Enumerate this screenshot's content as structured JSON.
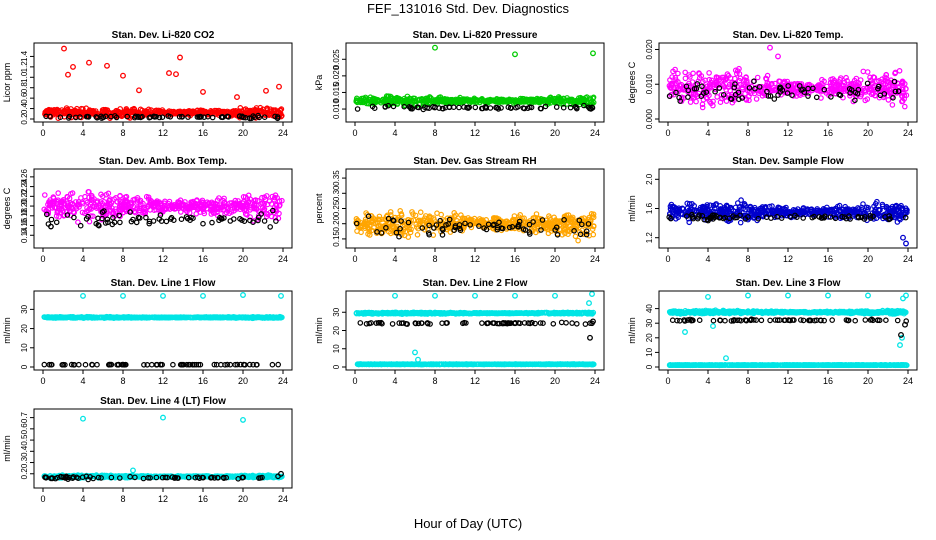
{
  "figure": {
    "title": "FEF_131016  Std. Dev. Diagnostics",
    "xlabel": "Hour of Day (UTC)"
  },
  "chart_data": [
    {
      "type": "scatter",
      "title": "Stan. Dev. Li-820 CO2",
      "ylabel": "Licor ppm",
      "xlim": [
        0,
        24
      ],
      "ylim": [
        0.2,
        1.6
      ],
      "xticks": [
        "0",
        "4",
        "8",
        "12",
        "16",
        "20",
        "24"
      ],
      "yticks": [
        "0.2",
        "0.4",
        "0.6",
        "0.8",
        "1.0",
        "1.2",
        "1.4"
      ],
      "ytick_values": [
        0.2,
        0.4,
        0.6,
        0.8,
        1.0,
        1.2,
        1.4
      ],
      "series": [
        {
          "color": "#ff0000",
          "base": 0.32,
          "spread": 0.1,
          "sparse": [
            [
              2.1,
              1.55
            ],
            [
              2.5,
              1.05
            ],
            [
              3.0,
              1.2
            ],
            [
              4.6,
              1.28
            ],
            [
              6.4,
              1.22
            ],
            [
              8.0,
              1.03
            ],
            [
              9.6,
              0.75
            ],
            [
              12.6,
              1.08
            ],
            [
              13.3,
              1.06
            ],
            [
              13.7,
              1.38
            ],
            [
              16.0,
              0.72
            ],
            [
              19.4,
              0.62
            ],
            [
              22.3,
              0.74
            ],
            [
              23.6,
              0.82
            ]
          ]
        },
        {
          "color": "#000000",
          "base": 0.24,
          "spread": 0.03,
          "sparse": []
        }
      ]
    },
    {
      "type": "scatter",
      "title": "Stan. Dev. Li-820 Pressure",
      "ylabel": "kPa",
      "xlim": [
        0,
        24
      ],
      "ylim": [
        0.007,
        0.029
      ],
      "xticks": [
        "0",
        "4",
        "8",
        "12",
        "16",
        "20",
        "24"
      ],
      "yticks": [
        "0.010",
        "0.015",
        "0.020",
        "0.025"
      ],
      "ytick_values": [
        0.01,
        0.015,
        0.02,
        0.025
      ],
      "series": [
        {
          "color": "#00cc00",
          "base": 0.0125,
          "spread": 0.0013,
          "sparse": [
            [
              8.0,
              0.0285
            ],
            [
              16.0,
              0.0265
            ],
            [
              23.8,
              0.0268
            ]
          ]
        },
        {
          "color": "#000000",
          "base": 0.0104,
          "spread": 0.0007,
          "sparse": []
        }
      ]
    },
    {
      "type": "scatter",
      "title": "Stan. Dev. Li-820 Temp.",
      "ylabel": "degrees C",
      "xlim": [
        0,
        24
      ],
      "ylim": [
        0,
        0.021
      ],
      "xticks": [
        "0",
        "4",
        "8",
        "12",
        "16",
        "20",
        "24"
      ],
      "yticks": [
        "0.000",
        "0.010",
        "0.020"
      ],
      "ytick_values": [
        0.0,
        0.01,
        0.02
      ],
      "series": [
        {
          "color": "#ff00ff",
          "base": 0.009,
          "spread": 0.005,
          "sparse": [
            [
              10.2,
              0.0205
            ],
            [
              11.0,
              0.018
            ]
          ]
        },
        {
          "color": "#000000",
          "base": 0.008,
          "spread": 0.004,
          "sparse": []
        }
      ]
    },
    {
      "type": "scatter",
      "title": "Stan. Dev. Amb. Box Temp.",
      "ylabel": "degrees C",
      "xlim": [
        0,
        24
      ],
      "ylim": [
        0.12,
        0.27
      ],
      "xticks": [
        "0",
        "4",
        "8",
        "12",
        "16",
        "20",
        "24"
      ],
      "yticks": [
        "0.14",
        "0.16",
        "0.18",
        "0.20",
        "0.22",
        "0.24",
        "0.26"
      ],
      "ytick_values": [
        0.14,
        0.16,
        0.18,
        0.2,
        0.22,
        0.24,
        0.26
      ],
      "series": [
        {
          "color": "#ff00ff",
          "base": 0.2,
          "spread": 0.03,
          "sparse": []
        },
        {
          "color": "#000000",
          "base": 0.17,
          "spread": 0.02,
          "sparse": []
        }
      ]
    },
    {
      "type": "scatter",
      "title": "Stan. Dev. Gas Stream RH",
      "ylabel": "percent",
      "xlim": [
        0,
        24
      ],
      "ylim": [
        0.13,
        0.37
      ],
      "xticks": [
        "0",
        "4",
        "8",
        "12",
        "16",
        "20",
        "24"
      ],
      "yticks": [
        "0.15",
        "0.20",
        "0.25",
        "0.30",
        "0.35"
      ],
      "ytick_values": [
        0.15,
        0.2,
        0.25,
        0.3,
        0.35
      ],
      "series": [
        {
          "color": "#ffa500",
          "base": 0.2,
          "spread": 0.045,
          "sparse": []
        },
        {
          "color": "#000000",
          "base": 0.19,
          "spread": 0.04,
          "sparse": []
        }
      ]
    },
    {
      "type": "scatter",
      "title": "Stan. Dev. Sample Flow",
      "ylabel": "ml/min",
      "xlim": [
        0,
        24
      ],
      "ylim": [
        1.1,
        2.1
      ],
      "xticks": [
        "0",
        "4",
        "8",
        "12",
        "16",
        "20",
        "24"
      ],
      "yticks": [
        "1.2",
        "1.6",
        "2.0"
      ],
      "ytick_values": [
        1.2,
        1.6,
        2.0
      ],
      "series": [
        {
          "color": "#0000cc",
          "base": 1.55,
          "spread": 0.14,
          "sparse": [
            [
              23.8,
              1.12
            ],
            [
              23.5,
              1.2
            ]
          ]
        },
        {
          "color": "#000000",
          "base": 1.48,
          "spread": 0.05,
          "sparse": []
        }
      ]
    },
    {
      "type": "scatter",
      "title": "Stan. Dev. Line 1 Flow",
      "ylabel": "ml/min",
      "xlim": [
        0,
        24
      ],
      "ylim": [
        0,
        38
      ],
      "xticks": [
        "0",
        "4",
        "8",
        "12",
        "16",
        "20",
        "24"
      ],
      "yticks": [
        "0",
        "10",
        "20",
        "30"
      ],
      "ytick_values": [
        0,
        10,
        20,
        30
      ],
      "series": [
        {
          "color": "#00e5e5",
          "base": 25.8,
          "spread": 0.4,
          "sparse": [
            [
              4.0,
              37
            ],
            [
              8.0,
              37
            ],
            [
              12.0,
              37
            ],
            [
              16.0,
              37
            ],
            [
              20.0,
              37.5
            ],
            [
              23.8,
              37
            ]
          ]
        },
        {
          "color": "#000000",
          "base": 1.2,
          "spread": 0.1,
          "sparse": []
        }
      ]
    },
    {
      "type": "scatter",
      "title": "Stan. Dev. Line 2 Flow",
      "ylabel": "ml/min",
      "xlim": [
        0,
        24
      ],
      "ylim": [
        0,
        40
      ],
      "xticks": [
        "0",
        "4",
        "8",
        "12",
        "16",
        "20",
        "24"
      ],
      "yticks": [
        "0",
        "10",
        "20",
        "30"
      ],
      "ytick_values": [
        0,
        10,
        20,
        30
      ],
      "series": [
        {
          "color": "#00e5e5",
          "base": 29.5,
          "spread": 0.5,
          "sparse": [
            [
              4.0,
              39
            ],
            [
              8.0,
              39
            ],
            [
              12.0,
              39
            ],
            [
              16.0,
              39
            ],
            [
              20.0,
              39
            ],
            [
              23.7,
              40
            ],
            [
              23.4,
              35
            ],
            [
              6.0,
              8
            ],
            [
              6.3,
              4
            ]
          ]
        },
        {
          "color": "#00e5e5",
          "base": 1.5,
          "spread": 0.15,
          "sparse": []
        },
        {
          "color": "#000000",
          "base": 24.0,
          "spread": 0.6,
          "sparse": [
            [
              23.5,
              16
            ],
            [
              23.8,
              25
            ]
          ]
        }
      ]
    },
    {
      "type": "scatter",
      "title": "Stan. Dev. Line 3 Flow",
      "ylabel": "ml/min",
      "xlim": [
        0,
        24
      ],
      "ylim": [
        0,
        50
      ],
      "xticks": [
        "0",
        "4",
        "8",
        "12",
        "16",
        "20",
        "24"
      ],
      "yticks": [
        "0",
        "10",
        "20",
        "30",
        "40"
      ],
      "ytick_values": [
        0,
        10,
        20,
        30,
        40
      ],
      "series": [
        {
          "color": "#00e5e5",
          "base": 37.5,
          "spread": 1.2,
          "sparse": [
            [
              4.0,
              48
            ],
            [
              8.0,
              49
            ],
            [
              12.0,
              49
            ],
            [
              16.0,
              49
            ],
            [
              20.0,
              49
            ],
            [
              23.5,
              47
            ],
            [
              23.8,
              49
            ],
            [
              23.2,
              15
            ],
            [
              23.4,
              20
            ],
            [
              5.8,
              6
            ],
            [
              1.7,
              24
            ],
            [
              4.5,
              28
            ]
          ]
        },
        {
          "color": "#00e5e5",
          "base": 1.3,
          "spread": 0.15,
          "sparse": []
        },
        {
          "color": "#000000",
          "base": 32.0,
          "spread": 0.8,
          "sparse": [
            [
              23.3,
              22
            ],
            [
              23.7,
              29
            ]
          ]
        }
      ]
    },
    {
      "type": "scatter",
      "title": "Stan. Dev. Line 4 (LT) Flow",
      "ylabel": "ml/min",
      "xlim": [
        0,
        24
      ],
      "ylim": [
        0.1,
        0.75
      ],
      "xticks": [
        "0",
        "4",
        "8",
        "12",
        "16",
        "20",
        "24"
      ],
      "yticks": [
        "0.2",
        "0.3",
        "0.4",
        "0.5",
        "0.6",
        "0.7"
      ],
      "ytick_values": [
        0.2,
        0.3,
        0.4,
        0.5,
        0.6,
        0.7
      ],
      "series": [
        {
          "color": "#00e5e5",
          "base": 0.175,
          "spread": 0.012,
          "sparse": [
            [
              4.0,
              0.69
            ],
            [
              12.0,
              0.7
            ],
            [
              20.0,
              0.68
            ],
            [
              9.0,
              0.23
            ]
          ]
        },
        {
          "color": "#000000",
          "base": 0.165,
          "spread": 0.012,
          "sparse": [
            [
              23.8,
              0.2
            ]
          ]
        }
      ]
    }
  ]
}
